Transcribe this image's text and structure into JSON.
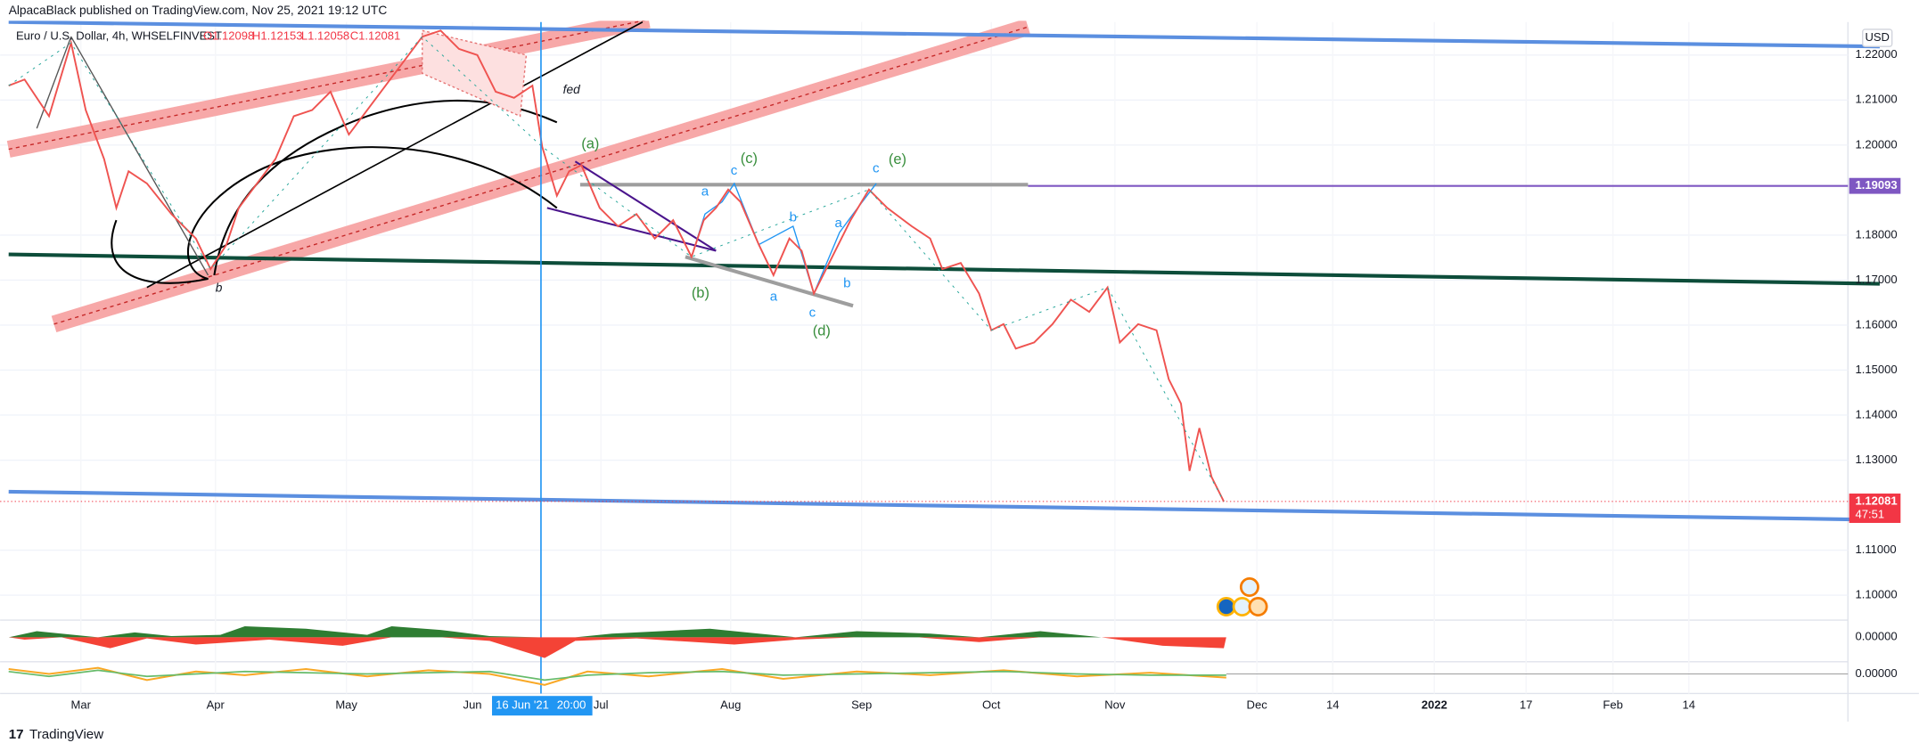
{
  "header": {
    "publisher": "AlpacaBlack published on TradingView.com, Nov 25, 2021 19:12 UTC",
    "symbol": "Euro / U.S. Dollar, 4h, WHSELFINVEST",
    "open": "O1.12098",
    "high": "H1.12153",
    "low": "L1.12058",
    "close": "C1.12081"
  },
  "price_axis": {
    "currency": "USD",
    "ticks": [
      {
        "value": 1.22,
        "label": "1.22000"
      },
      {
        "value": 1.21,
        "label": "1.21000"
      },
      {
        "value": 1.2,
        "label": "1.20000"
      },
      {
        "value": 1.18,
        "label": "1.18000"
      },
      {
        "value": 1.17,
        "label": "1.17000"
      },
      {
        "value": 1.16,
        "label": "1.16000"
      },
      {
        "value": 1.15,
        "label": "1.15000"
      },
      {
        "value": 1.14,
        "label": "1.14000"
      },
      {
        "value": 1.13,
        "label": "1.13000"
      },
      {
        "value": 1.11,
        "label": "1.11000"
      },
      {
        "value": 1.1,
        "label": "1.10000"
      }
    ],
    "markers": [
      {
        "value": 1.19093,
        "label": "1.19093",
        "color": "#7e57c2"
      },
      {
        "value": 1.12081,
        "label": "1.12081",
        "countdown": "47:51",
        "color": "#f23645"
      }
    ]
  },
  "indicator_panes": [
    {
      "label": "0.00000"
    },
    {
      "label": "0.00000"
    }
  ],
  "time_axis": {
    "labels": [
      "Mar",
      "Apr",
      "May",
      "Jun",
      "Jul",
      "Aug",
      "Sep",
      "Oct",
      "Nov",
      "Dec",
      "14",
      "2022",
      "17",
      "Feb",
      "14"
    ],
    "crosshair_date": "16 Jun '21",
    "crosshair_time": "20:00"
  },
  "annotations": [
    "(a)",
    "c",
    "(c)",
    "a",
    "b",
    "a",
    "c",
    "(e)",
    "(b)",
    "a",
    "b",
    "c",
    "(d)",
    "fed",
    "b"
  ],
  "footer": "TradingView"
}
